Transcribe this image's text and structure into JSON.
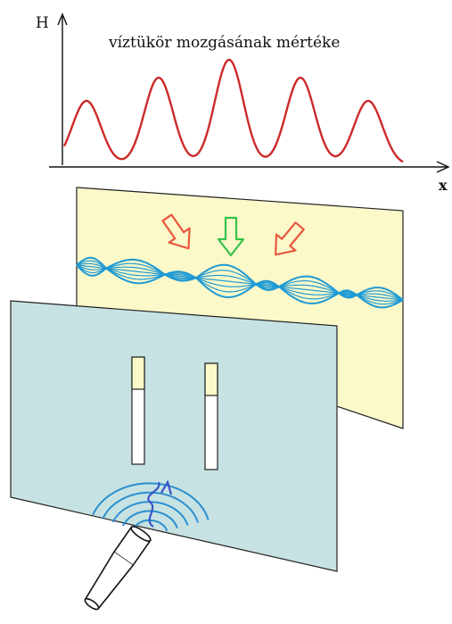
{
  "title": "víztükör mozgásának mértéke",
  "axes": {
    "y_label": "H",
    "x_label": "x"
  },
  "colors": {
    "wave_curve": "#cc2a2a",
    "back_screen": "#fbf8c9",
    "front_screen": "#c7e2e2",
    "pattern": "#1f9ad4",
    "arrow_side": "#e8573f",
    "arrow_center": "#35c24a",
    "source_wave": "#2b8fd0",
    "source_ray": "#3a55c8"
  },
  "icons": {
    "source": "torch-icon",
    "arrows": [
      "down-right-arrow-icon",
      "down-arrow-icon",
      "down-left-arrow-icon"
    ]
  }
}
